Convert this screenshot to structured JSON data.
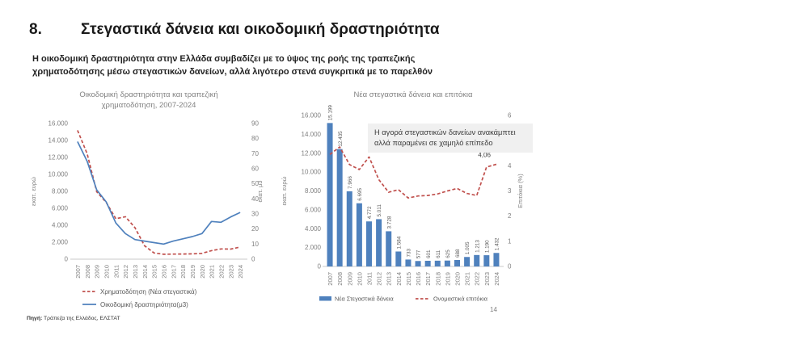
{
  "header": {
    "number": "8.",
    "title": "Στεγαστικά δάνεια και οικοδομική δραστηριότητα"
  },
  "lead": "Η οικοδομική δραστηριότητα στην Ελλάδα συμβαδίζει με το ύψος της ροής της τραπεζικής χρηματοδότησης μέσω στεγαστικών δανείων, αλλά λιγότερο στενά συγκριτικά με το παρελθόν",
  "footer": {
    "source_label": "Πηγή:",
    "source": "Τράπεζα της Ελλάδος, ΕΛΣΤΑΤ",
    "page_number": "14"
  },
  "colors": {
    "blue": "#4F81BD",
    "red": "#C0504D",
    "axis_text": "#7F7F7F",
    "label_text": "#595959",
    "axis_line": "#C9C9C9",
    "annotation_bg": "#F0F0F0"
  },
  "chart_data": [
    {
      "type": "line",
      "title": "Οικοδομική δραστηριότητα και τραπεζική χρηματοδότηση, 2007-2024",
      "x": [
        "2007",
        "2008",
        "2009",
        "2010",
        "2011",
        "2012",
        "2013",
        "2014",
        "2015",
        "2016",
        "2017",
        "2018",
        "2019",
        "2020",
        "2021",
        "2022",
        "2023",
        "2024"
      ],
      "left_axis": {
        "label": "εκατ. ευρώ",
        "min": 0,
        "max": 16000,
        "step": 2000
      },
      "right_axis": {
        "label": "εκατ. μ3",
        "min": 0,
        "max": 90,
        "step": 10
      },
      "grid": false,
      "legend_position": "bottom",
      "series": [
        {
          "name": "Χρηματοδότηση (Νέα στεγαστικά)",
          "axis": "left",
          "line_style": "dashed",
          "color_key": "red",
          "values": [
            15199,
            12435,
            7966,
            6695,
            4772,
            5011,
            3728,
            1584,
            733,
            577,
            601,
            611,
            625,
            688,
            1005,
            1213,
            1190,
            1432
          ]
        },
        {
          "name": "Οικοδομική δραστηριότητα(μ3)",
          "axis": "right",
          "line_style": "solid",
          "color_key": "blue",
          "values": [
            78,
            65,
            46,
            38,
            24,
            17,
            13,
            12,
            11,
            10,
            12,
            13.5,
            15,
            17,
            25,
            24.5,
            28,
            31
          ]
        }
      ]
    },
    {
      "type": "bar",
      "title": "Νέα στεγαστικά δάνεια και επιτόκια",
      "annotation": "Η αγορά στεγαστικών δανείων ανακάμπτει αλλά παραμένει σε χαμηλό επίπεδο",
      "x": [
        "2007",
        "2008",
        "2009",
        "2010",
        "2011",
        "2012",
        "2013",
        "2014",
        "2015",
        "2016",
        "2017",
        "2018",
        "2019",
        "2020",
        "2021",
        "2022",
        "2023",
        "2024"
      ],
      "left_axis": {
        "label": "εκατ. ευρώ",
        "min": 0,
        "max": 16000,
        "step": 2000
      },
      "right_axis": {
        "label": "Επιτόκια (%)",
        "min": 0,
        "max": 6,
        "step": 1
      },
      "grid": false,
      "legend_position": "bottom",
      "series": [
        {
          "kind": "bar",
          "name": "Νέα Στεγαστικά δάνεια",
          "axis": "left",
          "color_key": "blue",
          "values": [
            15199,
            12435,
            7966,
            6695,
            4772,
            5011,
            3728,
            1584,
            733,
            577,
            601,
            611,
            625,
            688,
            1005,
            1213,
            1190,
            1432
          ],
          "labels": [
            "15.199",
            "12.435",
            "7.966",
            "6.695",
            "4.772",
            "5.011",
            "3.728",
            "1.584",
            "733",
            "577",
            "601",
            "611",
            "625",
            "688",
            "1.005",
            "1.213",
            "1.190",
            "1.432"
          ]
        },
        {
          "kind": "line",
          "name": "Ονομαστικά επιτόκια",
          "axis": "right",
          "line_style": "dashed",
          "color_key": "red",
          "values": [
            4.45,
            4.75,
            4.05,
            3.85,
            4.35,
            3.45,
            2.95,
            3.05,
            2.72,
            2.8,
            2.82,
            2.88,
            3.0,
            3.1,
            2.9,
            2.82,
            3.95,
            4.06
          ],
          "end_label": "4,06"
        }
      ]
    }
  ]
}
